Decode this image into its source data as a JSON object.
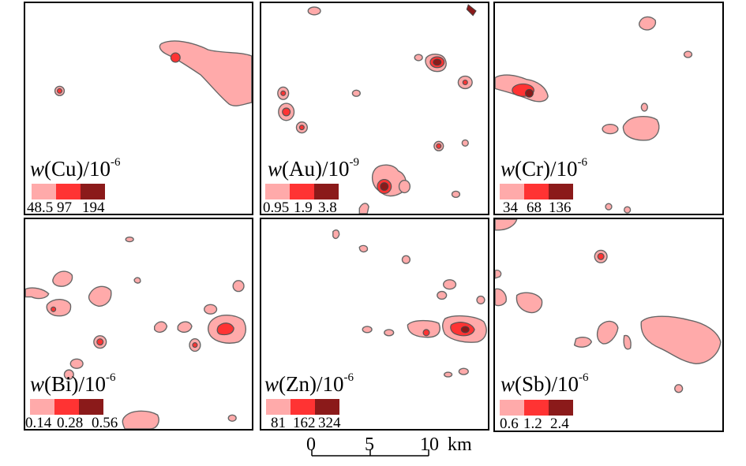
{
  "colors": {
    "low": "#ffaaaa",
    "mid": "#ff3333",
    "high": "#8b1a1a"
  },
  "panels": [
    {
      "id": "cu",
      "prefix": "w",
      "element": "(Cu)/10",
      "exp": "-6",
      "levels": [
        "48.5",
        "97",
        "194"
      ]
    },
    {
      "id": "au",
      "prefix": "w",
      "element": "(Au)/10",
      "exp": "-9",
      "levels": [
        "0.95",
        "1.9",
        "3.8"
      ]
    },
    {
      "id": "cr",
      "prefix": "w",
      "element": "(Cr)/10",
      "exp": "-6",
      "levels": [
        "34",
        "68",
        "136"
      ]
    },
    {
      "id": "bi",
      "prefix": "w",
      "element": "(Bi)/10",
      "exp": "-6",
      "levels": [
        "0.14",
        "0.28",
        "0.56"
      ]
    },
    {
      "id": "zn",
      "prefix": "w",
      "element": "(Zn)/10",
      "exp": "-6",
      "levels": [
        "81",
        "162",
        "324"
      ]
    },
    {
      "id": "sb",
      "prefix": "w",
      "element": "(Sb)/10",
      "exp": "-6",
      "levels": [
        "0.6",
        "1.2",
        "2.4"
      ]
    }
  ],
  "scale_bar": {
    "ticks": [
      "0",
      "5",
      "10"
    ],
    "unit": "km"
  }
}
